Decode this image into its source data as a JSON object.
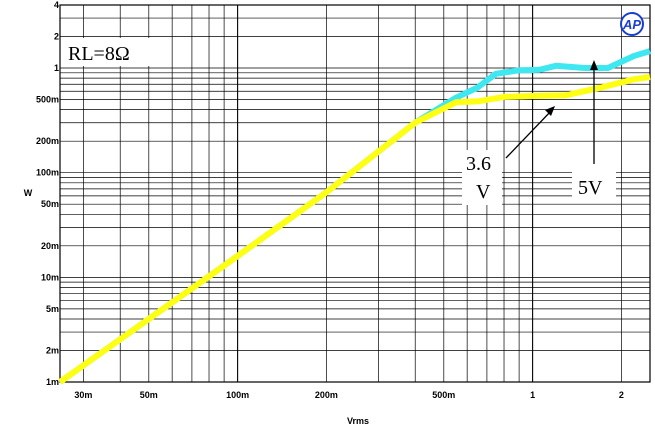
{
  "chart_data": {
    "type": "line",
    "xlabel": "Vrms",
    "ylabel": "W",
    "x_scale": "log",
    "y_scale": "log",
    "xlim": [
      0.025,
      2.5
    ],
    "ylim": [
      0.001,
      4
    ],
    "grid": true,
    "x_tick_labels": [
      {
        "value": 0.03,
        "label": "30m"
      },
      {
        "value": 0.05,
        "label": "50m"
      },
      {
        "value": 0.1,
        "label": "100m"
      },
      {
        "value": 0.2,
        "label": "200m"
      },
      {
        "value": 0.5,
        "label": "500m"
      },
      {
        "value": 1,
        "label": "1"
      },
      {
        "value": 2,
        "label": "2"
      }
    ],
    "y_tick_labels": [
      {
        "value": 0.001,
        "label": "1m"
      },
      {
        "value": 0.002,
        "label": "2m"
      },
      {
        "value": 0.005,
        "label": "5m"
      },
      {
        "value": 0.01,
        "label": "10m"
      },
      {
        "value": 0.02,
        "label": "20m"
      },
      {
        "value": 0.05,
        "label": "50m"
      },
      {
        "value": 0.1,
        "label": "100m"
      },
      {
        "value": 0.2,
        "label": "200m"
      },
      {
        "value": 0.5,
        "label": "500m"
      },
      {
        "value": 1,
        "label": "1"
      },
      {
        "value": 2,
        "label": "2"
      },
      {
        "value": 4,
        "label": "4"
      }
    ],
    "series": [
      {
        "name": "5V",
        "color": "#3fe8f0",
        "points": [
          [
            0.025,
            0.001
          ],
          [
            0.1,
            0.016
          ],
          [
            0.2,
            0.065
          ],
          [
            0.4,
            0.3
          ],
          [
            0.55,
            0.52
          ],
          [
            0.65,
            0.65
          ],
          [
            0.75,
            0.88
          ],
          [
            0.9,
            0.95
          ],
          [
            1.05,
            0.96
          ],
          [
            1.2,
            1.05
          ],
          [
            1.5,
            1.0
          ],
          [
            1.8,
            1.0
          ],
          [
            2.2,
            1.3
          ],
          [
            2.5,
            1.45
          ]
        ]
      },
      {
        "name": "3.6V",
        "color": "#ffff14",
        "points": [
          [
            0.025,
            0.001
          ],
          [
            0.1,
            0.016
          ],
          [
            0.2,
            0.065
          ],
          [
            0.4,
            0.3
          ],
          [
            0.55,
            0.47
          ],
          [
            0.65,
            0.48
          ],
          [
            0.8,
            0.53
          ],
          [
            1.0,
            0.54
          ],
          [
            1.3,
            0.55
          ],
          [
            1.7,
            0.65
          ],
          [
            2.2,
            0.78
          ],
          [
            2.5,
            0.82
          ]
        ]
      }
    ],
    "annotations": [
      {
        "text": "RL=8Ω",
        "kind": "label"
      },
      {
        "text": "3.6",
        "kind": "callout-3.6V-line1"
      },
      {
        "text": "V",
        "kind": "callout-3.6V-line2"
      },
      {
        "text": "5V",
        "kind": "callout-5V"
      }
    ],
    "logo_text": "AP"
  },
  "colors": {
    "grid": "#000000",
    "background": "#ffffff"
  }
}
